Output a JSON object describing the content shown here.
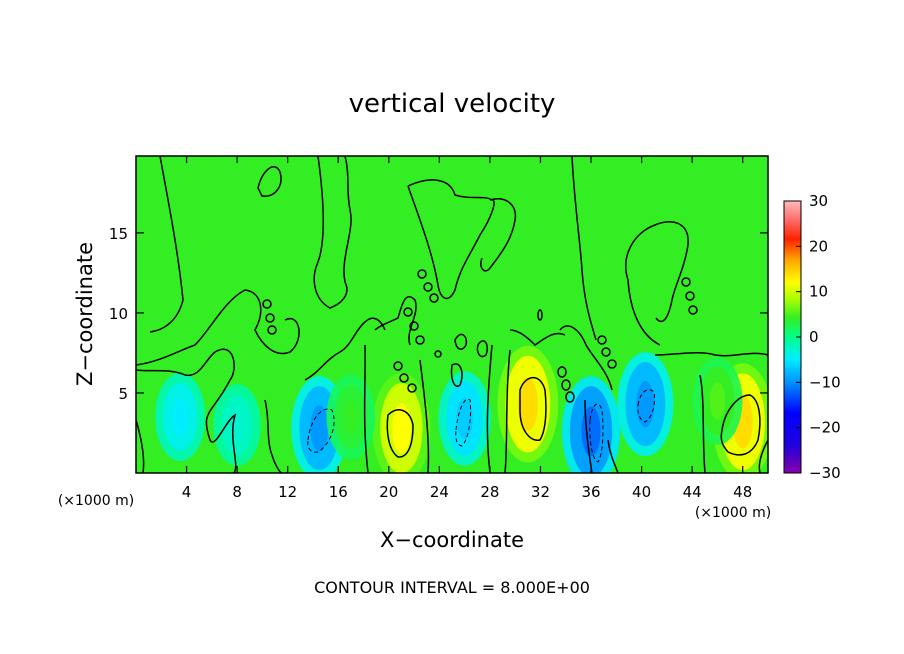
{
  "chart_data": {
    "type": "heatmap",
    "title": "vertical velocity",
    "xlabel": "X−coordinate",
    "ylabel": "Z−coordinate",
    "xunit_left": "(×1000 m)",
    "xunit_right": "(×1000 m)",
    "footer": "CONTOUR INTERVAL = 8.000E+00",
    "xlim": [
      0,
      50
    ],
    "ylim": [
      0,
      19.8
    ],
    "x_ticks": [
      4,
      8,
      12,
      16,
      20,
      24,
      28,
      32,
      36,
      40,
      44,
      48
    ],
    "x_tick_labels": [
      "4",
      "8",
      "12",
      "16",
      "20",
      "24",
      "28",
      "32",
      "36",
      "40",
      "44",
      "48"
    ],
    "y_ticks": [
      5,
      10,
      15
    ],
    "y_tick_labels": [
      "5",
      "10",
      "15"
    ],
    "colorbar": {
      "range": [
        -30,
        30
      ],
      "ticks": [
        30,
        20,
        10,
        0,
        -10,
        -20,
        -30
      ],
      "tick_labels": [
        "30",
        "20",
        "10",
        "0",
        "−10",
        "−20",
        "−30"
      ],
      "colors": [
        "#8800aa",
        "#0000ff",
        "#0088ff",
        "#00eeff",
        "#00ff88",
        "#33ee22",
        "#aaff00",
        "#ffff00",
        "#ffaa00",
        "#ff2200",
        "#ff7777",
        "#ffbbbb"
      ]
    },
    "contour_interval": 8.0,
    "background_value": 1,
    "cells": [
      {
        "x": 3.5,
        "z": 3.5,
        "value": -5
      },
      {
        "x": 8,
        "z": 3.0,
        "value": -3
      },
      {
        "x": 14.5,
        "z": 2.8,
        "value": -10
      },
      {
        "x": 21,
        "z": 2.8,
        "value": 12
      },
      {
        "x": 26,
        "z": 3.4,
        "value": -7
      },
      {
        "x": 31,
        "z": 4.3,
        "value": 14
      },
      {
        "x": 36,
        "z": 2.6,
        "value": -12
      },
      {
        "x": 40.3,
        "z": 4.3,
        "value": -10
      },
      {
        "x": 48,
        "z": 3.2,
        "value": 14
      },
      {
        "x": 17,
        "z": 3.5,
        "value": 4
      },
      {
        "x": 46,
        "z": 4.5,
        "value": 5
      }
    ]
  }
}
